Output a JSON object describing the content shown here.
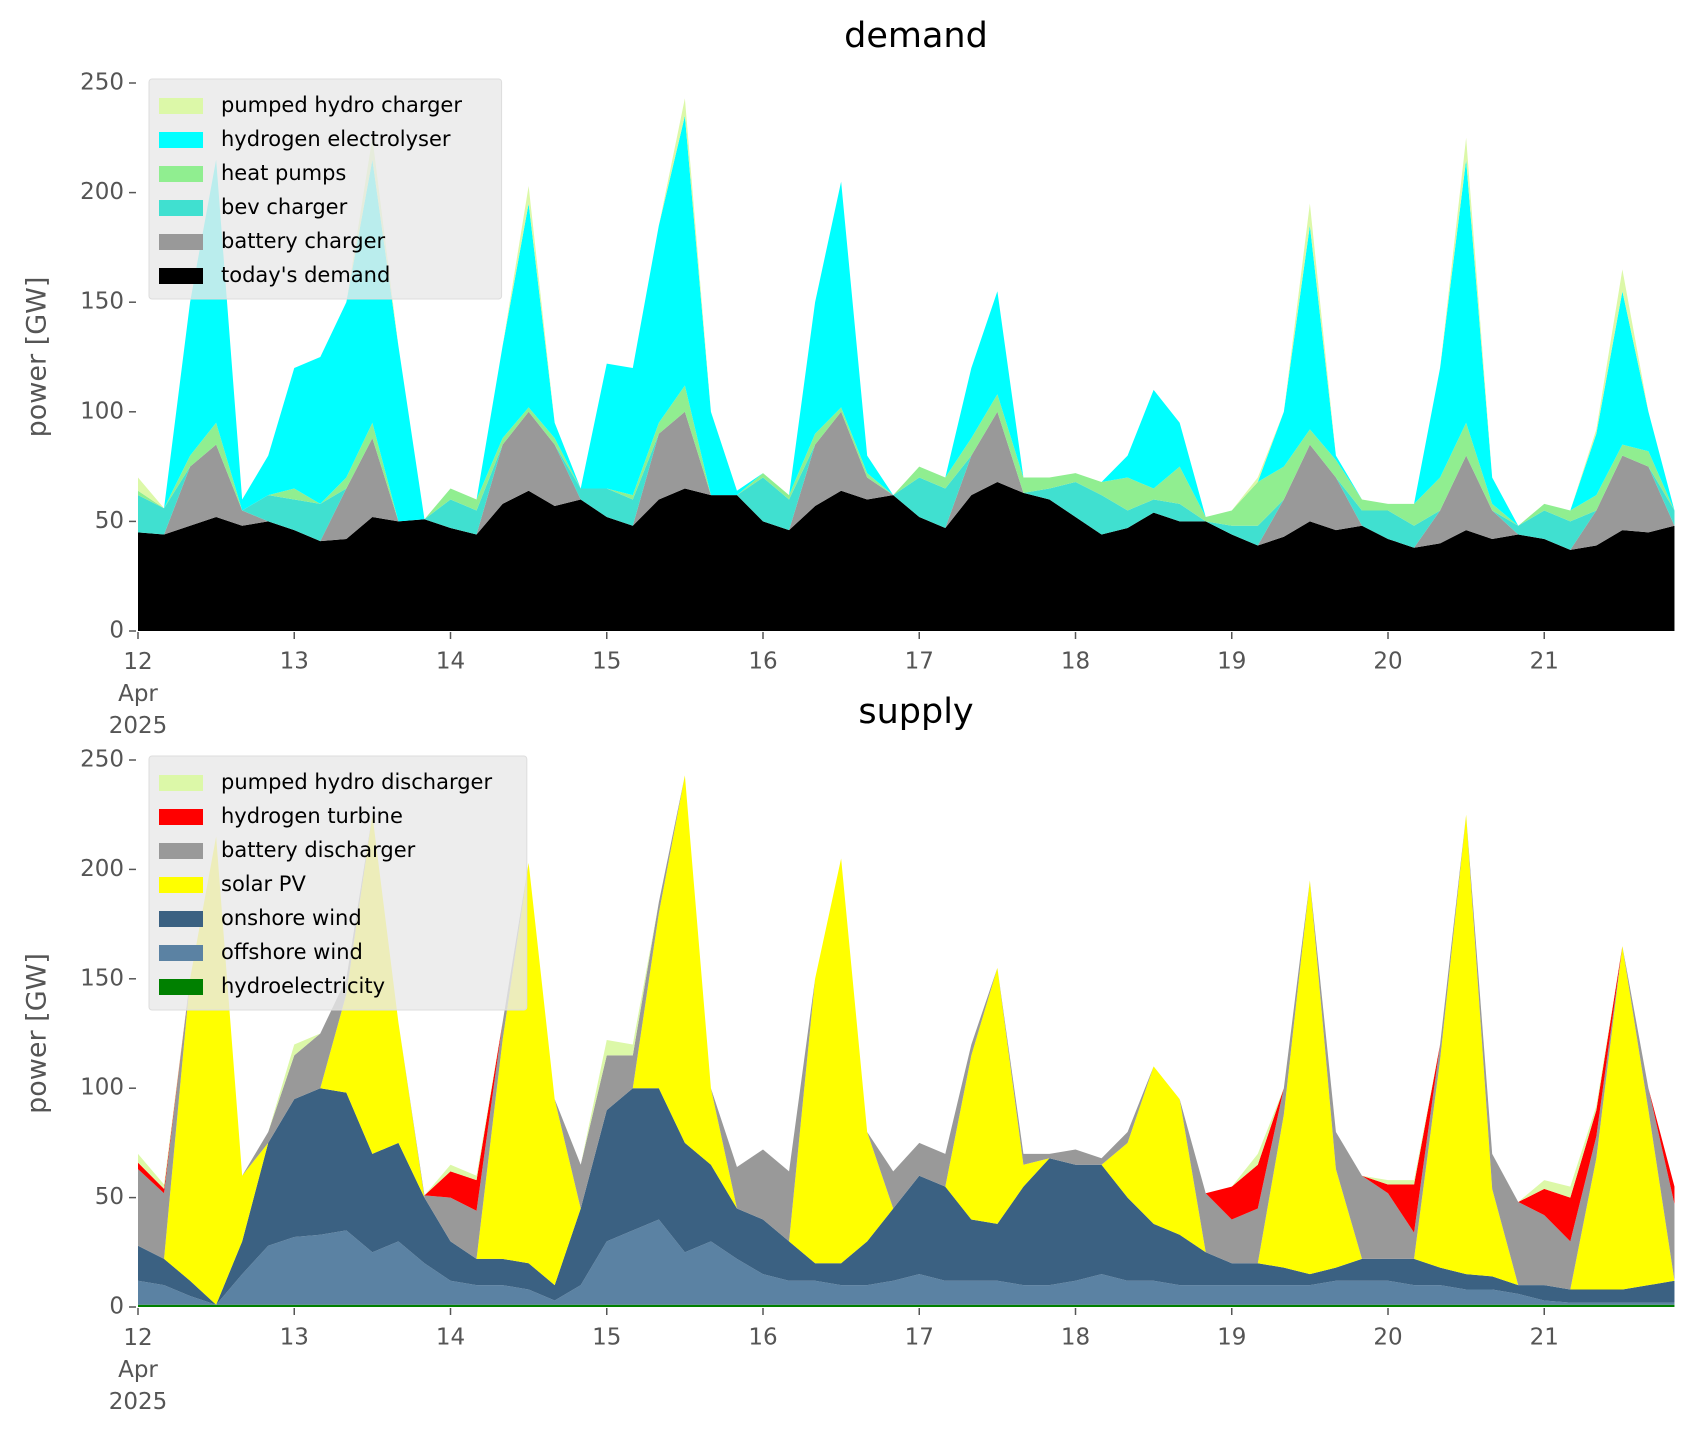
{
  "chart_data": [
    {
      "type": "stacked_area",
      "title": "demand",
      "y_label": "power [GW]",
      "legend": "upper left",
      "x": [
        "2025-04-12T00:00",
        "2025-04-12T04:00",
        "2025-04-12T08:00",
        "2025-04-12T12:00",
        "2025-04-12T16:00",
        "2025-04-12T20:00",
        "2025-04-13T00:00",
        "2025-04-13T04:00",
        "2025-04-13T08:00",
        "2025-04-13T12:00",
        "2025-04-13T16:00",
        "2025-04-13T20:00",
        "2025-04-14T00:00",
        "2025-04-14T04:00",
        "2025-04-14T08:00",
        "2025-04-14T12:00",
        "2025-04-14T16:00",
        "2025-04-14T20:00",
        "2025-04-15T00:00",
        "2025-04-15T04:00",
        "2025-04-15T08:00",
        "2025-04-15T12:00",
        "2025-04-15T16:00",
        "2025-04-15T20:00",
        "2025-04-16T00:00",
        "2025-04-16T04:00",
        "2025-04-16T08:00",
        "2025-04-16T12:00",
        "2025-04-16T16:00",
        "2025-04-16T20:00",
        "2025-04-17T00:00",
        "2025-04-17T04:00",
        "2025-04-17T08:00",
        "2025-04-17T12:00",
        "2025-04-17T16:00",
        "2025-04-17T20:00",
        "2025-04-18T00:00",
        "2025-04-18T04:00",
        "2025-04-18T08:00",
        "2025-04-18T12:00",
        "2025-04-18T16:00",
        "2025-04-18T20:00",
        "2025-04-19T00:00",
        "2025-04-19T04:00",
        "2025-04-19T08:00",
        "2025-04-19T12:00",
        "2025-04-19T16:00",
        "2025-04-19T20:00",
        "2025-04-20T00:00",
        "2025-04-20T04:00",
        "2025-04-20T08:00",
        "2025-04-20T12:00",
        "2025-04-20T16:00",
        "2025-04-20T20:00",
        "2025-04-21T00:00",
        "2025-04-21T04:00",
        "2025-04-21T08:00",
        "2025-04-21T12:00",
        "2025-04-21T16:00",
        "2025-04-21T20:00"
      ],
      "xlim": [
        "2025-04-12T00:00",
        "2025-04-21T23:00"
      ],
      "xticks": [
        {
          "value": "2025-04-12T00:00",
          "label": "12 Apr 2025"
        },
        {
          "value": "2025-04-13T00:00",
          "label": "13"
        },
        {
          "value": "2025-04-14T00:00",
          "label": "14"
        },
        {
          "value": "2025-04-15T00:00",
          "label": "15"
        },
        {
          "value": "2025-04-16T00:00",
          "label": "16"
        },
        {
          "value": "2025-04-17T00:00",
          "label": "17"
        },
        {
          "value": "2025-04-18T00:00",
          "label": "18"
        },
        {
          "value": "2025-04-19T00:00",
          "label": "19"
        },
        {
          "value": "2025-04-20T00:00",
          "label": "20"
        },
        {
          "value": "2025-04-21T00:00",
          "label": "21"
        }
      ],
      "ylim": [
        0,
        250
      ],
      "yticks": [
        0,
        50,
        100,
        150,
        200,
        250
      ],
      "series": [
        {
          "name": "pumped hydro charger",
          "color": "#dcf8a8",
          "values": [
            6,
            0,
            0,
            0,
            0,
            0,
            0,
            0,
            0,
            10,
            0,
            0,
            0,
            0,
            0,
            8,
            0,
            0,
            0,
            0,
            0,
            8,
            0,
            0,
            0,
            0,
            0,
            0,
            0,
            0,
            0,
            0,
            0,
            0,
            0,
            0,
            0,
            0,
            0,
            0,
            0,
            0,
            0,
            2,
            0,
            10,
            0,
            0,
            0,
            0,
            0,
            10,
            0,
            0,
            0,
            0,
            2,
            10,
            0,
            0
          ]
        },
        {
          "name": "hydrogen electrolyser",
          "color": "#00ffff",
          "values": [
            0,
            0,
            70,
            120,
            5,
            18,
            55,
            67,
            80,
            120,
            80,
            0,
            0,
            0,
            42,
            93,
            7,
            0,
            57,
            58,
            90,
            123,
            38,
            2,
            0,
            0,
            60,
            103,
            8,
            0,
            0,
            0,
            32,
            47,
            0,
            0,
            0,
            0,
            10,
            45,
            20,
            0,
            0,
            0,
            25,
            93,
            2,
            0,
            0,
            0,
            50,
            120,
            12,
            0,
            0,
            0,
            28,
            70,
            18,
            0
          ]
        },
        {
          "name": "heat pumps",
          "color": "#90ee90",
          "values": [
            2,
            0,
            5,
            10,
            0,
            0,
            5,
            0,
            5,
            7,
            0,
            0,
            5,
            5,
            3,
            2,
            3,
            0,
            0,
            2,
            5,
            12,
            0,
            0,
            2,
            2,
            5,
            2,
            2,
            0,
            5,
            5,
            8,
            8,
            7,
            5,
            4,
            6,
            15,
            5,
            17,
            2,
            7,
            20,
            15,
            7,
            8,
            5,
            3,
            10,
            15,
            15,
            3,
            0,
            3,
            5,
            7,
            5,
            7,
            0
          ]
        },
        {
          "name": "bev charger",
          "color": "#40e0d0",
          "values": [
            17,
            12,
            0,
            0,
            0,
            12,
            14,
            17,
            0,
            0,
            0,
            0,
            13,
            11,
            0,
            0,
            0,
            5,
            13,
            12,
            0,
            0,
            0,
            0,
            20,
            14,
            0,
            0,
            0,
            0,
            18,
            18,
            0,
            0,
            0,
            5,
            16,
            18,
            8,
            6,
            8,
            0,
            4,
            9,
            0,
            0,
            0,
            7,
            13,
            10,
            0,
            0,
            0,
            4,
            13,
            13,
            0,
            0,
            0,
            7
          ]
        },
        {
          "name": "battery charger",
          "color": "#999999",
          "values": [
            0,
            0,
            27,
            33,
            7,
            0,
            0,
            0,
            23,
            36,
            0,
            0,
            0,
            0,
            27,
            36,
            28,
            0,
            0,
            0,
            30,
            35,
            0,
            0,
            0,
            0,
            28,
            36,
            10,
            0,
            0,
            0,
            18,
            32,
            0,
            0,
            0,
            0,
            0,
            0,
            0,
            0,
            0,
            0,
            17,
            35,
            24,
            0,
            0,
            0,
            15,
            34,
            13,
            0,
            0,
            0,
            16,
            34,
            30,
            0
          ]
        },
        {
          "name": "today's demand",
          "color": "#000000",
          "values": [
            45,
            44,
            48,
            52,
            48,
            50,
            46,
            41,
            42,
            52,
            50,
            51,
            47,
            44,
            58,
            64,
            57,
            60,
            52,
            48,
            60,
            65,
            62,
            62,
            50,
            46,
            57,
            64,
            60,
            62,
            52,
            47,
            62,
            68,
            63,
            60,
            52,
            44,
            47,
            54,
            50,
            50,
            44,
            39,
            43,
            50,
            46,
            48,
            42,
            38,
            40,
            46,
            42,
            44,
            42,
            37,
            39,
            46,
            45,
            48
          ]
        }
      ]
    },
    {
      "type": "stacked_area",
      "title": "supply",
      "y_label": "power [GW]",
      "legend": "upper left",
      "x": [
        "2025-04-12T00:00",
        "2025-04-12T04:00",
        "2025-04-12T08:00",
        "2025-04-12T12:00",
        "2025-04-12T16:00",
        "2025-04-12T20:00",
        "2025-04-13T00:00",
        "2025-04-13T04:00",
        "2025-04-13T08:00",
        "2025-04-13T12:00",
        "2025-04-13T16:00",
        "2025-04-13T20:00",
        "2025-04-14T00:00",
        "2025-04-14T04:00",
        "2025-04-14T08:00",
        "2025-04-14T12:00",
        "2025-04-14T16:00",
        "2025-04-14T20:00",
        "2025-04-15T00:00",
        "2025-04-15T04:00",
        "2025-04-15T08:00",
        "2025-04-15T12:00",
        "2025-04-15T16:00",
        "2025-04-15T20:00",
        "2025-04-16T00:00",
        "2025-04-16T04:00",
        "2025-04-16T08:00",
        "2025-04-16T12:00",
        "2025-04-16T16:00",
        "2025-04-16T20:00",
        "2025-04-17T00:00",
        "2025-04-17T04:00",
        "2025-04-17T08:00",
        "2025-04-17T12:00",
        "2025-04-17T16:00",
        "2025-04-17T20:00",
        "2025-04-18T00:00",
        "2025-04-18T04:00",
        "2025-04-18T08:00",
        "2025-04-18T12:00",
        "2025-04-18T16:00",
        "2025-04-18T20:00",
        "2025-04-19T00:00",
        "2025-04-19T04:00",
        "2025-04-19T08:00",
        "2025-04-19T12:00",
        "2025-04-19T16:00",
        "2025-04-19T20:00",
        "2025-04-20T00:00",
        "2025-04-20T04:00",
        "2025-04-20T08:00",
        "2025-04-20T12:00",
        "2025-04-20T16:00",
        "2025-04-20T20:00",
        "2025-04-21T00:00",
        "2025-04-21T04:00",
        "2025-04-21T08:00",
        "2025-04-21T12:00",
        "2025-04-21T16:00",
        "2025-04-21T20:00"
      ],
      "xlim": [
        "2025-04-12T00:00",
        "2025-04-21T23:00"
      ],
      "xticks": [
        {
          "value": "2025-04-12T00:00",
          "label": "12 Apr 2025"
        },
        {
          "value": "2025-04-13T00:00",
          "label": "13"
        },
        {
          "value": "2025-04-14T00:00",
          "label": "14"
        },
        {
          "value": "2025-04-15T00:00",
          "label": "15"
        },
        {
          "value": "2025-04-16T00:00",
          "label": "16"
        },
        {
          "value": "2025-04-17T00:00",
          "label": "17"
        },
        {
          "value": "2025-04-18T00:00",
          "label": "18"
        },
        {
          "value": "2025-04-19T00:00",
          "label": "19"
        },
        {
          "value": "2025-04-20T00:00",
          "label": "20"
        },
        {
          "value": "2025-04-21T00:00",
          "label": "21"
        }
      ],
      "ylim": [
        0,
        250
      ],
      "yticks": [
        0,
        50,
        100,
        150,
        200,
        250
      ],
      "series": [
        {
          "name": "pumped hydro discharger",
          "color": "#dcf8a8",
          "values": [
            4,
            2,
            0,
            0,
            0,
            0,
            5,
            0,
            0,
            0,
            0,
            0,
            3,
            2,
            0,
            0,
            0,
            0,
            7,
            5,
            0,
            0,
            0,
            0,
            0,
            0,
            0,
            0,
            0,
            0,
            0,
            0,
            0,
            0,
            0,
            0,
            0,
            0,
            0,
            0,
            0,
            0,
            0,
            5,
            0,
            0,
            0,
            0,
            2,
            2,
            0,
            0,
            0,
            0,
            4,
            5,
            2,
            0,
            0,
            0
          ]
        },
        {
          "name": "hydrogen turbine",
          "color": "#ff0000",
          "values": [
            3,
            2,
            0,
            0,
            0,
            0,
            0,
            0,
            0,
            0,
            0,
            0,
            12,
            14,
            0,
            0,
            0,
            0,
            0,
            0,
            0,
            0,
            0,
            0,
            0,
            0,
            0,
            0,
            0,
            0,
            0,
            0,
            0,
            0,
            0,
            0,
            0,
            0,
            0,
            0,
            0,
            0,
            15,
            20,
            0,
            0,
            0,
            0,
            4,
            22,
            0,
            0,
            0,
            0,
            12,
            20,
            12,
            0,
            0,
            8
          ]
        },
        {
          "name": "battery discharger",
          "color": "#999999",
          "values": [
            35,
            30,
            0,
            0,
            0,
            5,
            20,
            25,
            7,
            0,
            0,
            1,
            20,
            22,
            8,
            0,
            0,
            20,
            25,
            15,
            5,
            0,
            0,
            19,
            32,
            32,
            0,
            0,
            0,
            17,
            15,
            15,
            5,
            0,
            5,
            2,
            7,
            3,
            5,
            0,
            0,
            27,
            20,
            25,
            12,
            0,
            17,
            38,
            30,
            12,
            7,
            0,
            16,
            38,
            32,
            22,
            10,
            0,
            10,
            35
          ]
        },
        {
          "name": "solar PV",
          "color": "#ffff00",
          "values": [
            0,
            0,
            138,
            214,
            30,
            0,
            0,
            0,
            45,
            155,
            55,
            0,
            0,
            0,
            100,
            183,
            85,
            0,
            0,
            0,
            80,
            168,
            35,
            0,
            0,
            0,
            130,
            185,
            50,
            0,
            0,
            0,
            75,
            117,
            10,
            0,
            0,
            0,
            25,
            72,
            62,
            0,
            0,
            0,
            70,
            180,
            45,
            0,
            0,
            0,
            95,
            210,
            40,
            0,
            0,
            0,
            60,
            157,
            80,
            0
          ]
        },
        {
          "name": "onshore wind",
          "color": "#3b6182",
          "values": [
            16,
            12,
            7,
            0,
            15,
            47,
            63,
            67,
            63,
            45,
            45,
            30,
            18,
            12,
            12,
            12,
            7,
            35,
            60,
            65,
            60,
            50,
            35,
            23,
            25,
            18,
            8,
            10,
            20,
            33,
            45,
            43,
            28,
            26,
            45,
            58,
            53,
            50,
            38,
            26,
            23,
            15,
            10,
            10,
            8,
            5,
            6,
            10,
            10,
            12,
            8,
            7,
            6,
            4,
            7,
            6,
            6,
            6,
            8,
            10
          ]
        },
        {
          "name": "offshore wind",
          "color": "#5b82a3",
          "values": [
            11,
            9,
            4,
            0,
            14,
            27,
            31,
            32,
            34,
            24,
            29,
            19,
            11,
            9,
            9,
            7,
            2,
            9,
            29,
            34,
            39,
            24,
            29,
            21,
            14,
            11,
            11,
            9,
            9,
            11,
            14,
            11,
            11,
            11,
            9,
            9,
            11,
            14,
            11,
            11,
            9,
            9,
            9,
            9,
            9,
            9,
            11,
            11,
            11,
            9,
            9,
            7,
            7,
            5,
            2,
            1,
            1,
            1,
            1,
            1
          ]
        },
        {
          "name": "hydroelectricity",
          "color": "#008000",
          "values": [
            1,
            1,
            1,
            1,
            1,
            1,
            1,
            1,
            1,
            1,
            1,
            1,
            1,
            1,
            1,
            1,
            1,
            1,
            1,
            1,
            1,
            1,
            1,
            1,
            1,
            1,
            1,
            1,
            1,
            1,
            1,
            1,
            1,
            1,
            1,
            1,
            1,
            1,
            1,
            1,
            1,
            1,
            1,
            1,
            1,
            1,
            1,
            1,
            1,
            1,
            1,
            1,
            1,
            1,
            1,
            1,
            1,
            1,
            1,
            1
          ]
        }
      ]
    }
  ]
}
